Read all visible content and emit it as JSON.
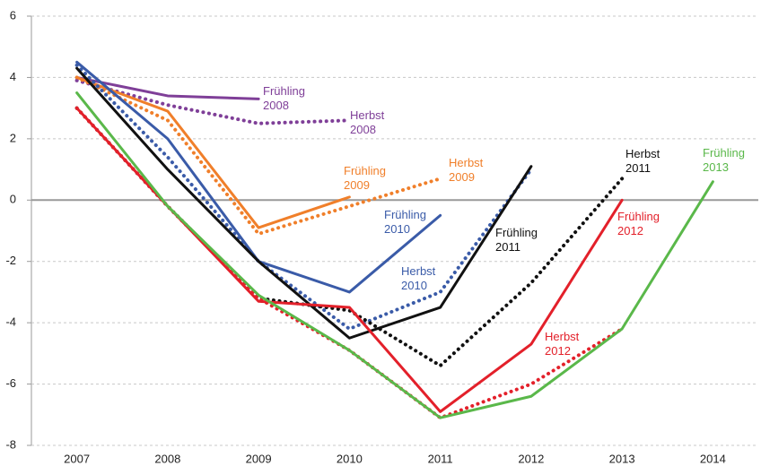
{
  "chart_data": {
    "type": "line",
    "categories": [
      "2007",
      "2008",
      "2009",
      "2010",
      "2011",
      "2012",
      "2013",
      "2014"
    ],
    "ylim": [
      -8,
      6
    ],
    "yticks": [
      -8,
      -6,
      -4,
      -2,
      0,
      2,
      4,
      6
    ],
    "grid": true,
    "series": [
      {
        "name": "Frühling 2008",
        "color": "#7f3f98",
        "line_style": "solid",
        "values": [
          4.0,
          3.4,
          3.3,
          null,
          null,
          null,
          null,
          null
        ]
      },
      {
        "name": "Herbst 2008",
        "color": "#7f3f98",
        "line_style": "dotted",
        "values": [
          3.9,
          3.1,
          2.5,
          2.6,
          null,
          null,
          null,
          null
        ]
      },
      {
        "name": "Frühling 2009",
        "color": "#f07f2a",
        "line_style": "solid",
        "values": [
          4.0,
          2.9,
          -0.9,
          0.1,
          null,
          null,
          null,
          null
        ]
      },
      {
        "name": "Herbst 2009",
        "color": "#f07f2a",
        "line_style": "dotted",
        "values": [
          4.0,
          2.6,
          -1.1,
          -0.2,
          0.7,
          null,
          null,
          null
        ]
      },
      {
        "name": "Frühling 2010",
        "color": "#3a5ba8",
        "line_style": "solid",
        "values": [
          4.5,
          2.0,
          -2.0,
          -3.0,
          -0.5,
          null,
          null,
          null
        ]
      },
      {
        "name": "Herbst 2010",
        "color": "#3a5ba8",
        "line_style": "dotted",
        "values": [
          4.4,
          1.4,
          -2.0,
          -4.2,
          -3.0,
          1.0,
          null,
          null
        ]
      },
      {
        "name": "Frühling 2011",
        "color": "#111111",
        "line_style": "solid",
        "values": [
          4.3,
          1.0,
          -2.0,
          -4.5,
          -3.5,
          1.1,
          null,
          null
        ]
      },
      {
        "name": "Herbst 2011",
        "color": "#111111",
        "line_style": "dotted",
        "values": [
          3.0,
          -0.2,
          -3.2,
          -3.6,
          -5.4,
          -2.7,
          0.7,
          null
        ]
      },
      {
        "name": "Frühling 2012",
        "color": "#e3202a",
        "line_style": "solid",
        "values": [
          3.0,
          -0.2,
          -3.3,
          -3.5,
          -6.9,
          -4.7,
          0.0,
          null
        ]
      },
      {
        "name": "Herbst 2012",
        "color": "#e3202a",
        "line_style": "dotted",
        "values": [
          3.0,
          -0.2,
          -3.2,
          -4.9,
          -7.1,
          -6.0,
          -4.2,
          null
        ]
      },
      {
        "name": "Frühling 2013",
        "color": "#5ab84a",
        "line_style": "solid",
        "values": [
          3.5,
          -0.2,
          -3.1,
          -4.9,
          -7.1,
          -6.4,
          -4.2,
          0.6
        ]
      }
    ]
  }
}
